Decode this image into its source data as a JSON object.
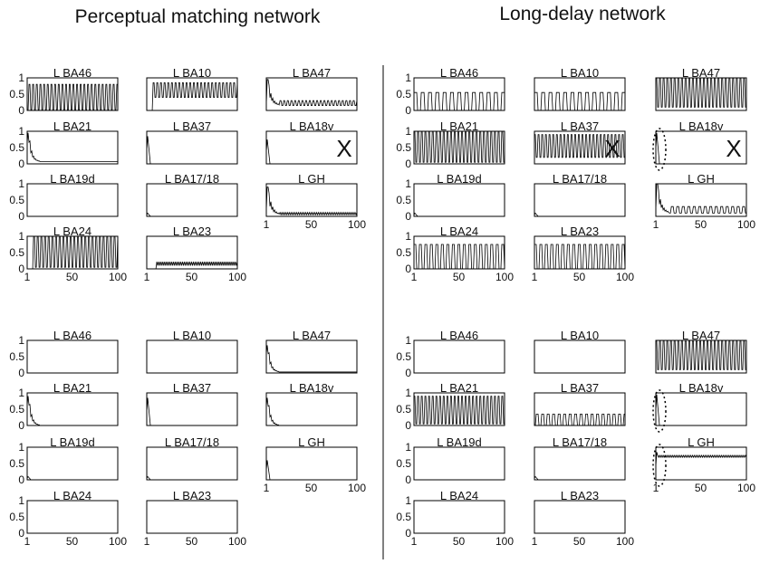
{
  "titles": {
    "left": "Perceptual matching network",
    "right": "Long-delay network"
  },
  "chart_data": {
    "type": "line",
    "x_range": [
      1,
      100
    ],
    "y_range": [
      0,
      1
    ],
    "x_ticks": [
      "1",
      "50",
      "100"
    ],
    "y_ticks": [
      "0",
      "0.5",
      "1"
    ],
    "regions": [
      {
        "network": "Perceptual matching network",
        "condition": "top",
        "panels": [
          {
            "label": "L BA46",
            "pattern": "osc",
            "params": {
              "start": 3,
              "low": 0.02,
              "high": 0.8,
              "period": 2
            }
          },
          {
            "label": "L BA10",
            "pattern": "osc",
            "params": {
              "start": 8,
              "low": 0.4,
              "high": 0.85,
              "period": 2
            }
          },
          {
            "label": "L BA47",
            "pattern": "burst_osc",
            "params": {
              "peak": 0.95,
              "low": 0.15,
              "high": 0.3,
              "period": 2
            }
          },
          {
            "label": "L BA21",
            "pattern": "decay",
            "params": {
              "peak": 0.95,
              "end": 0.07
            }
          },
          {
            "label": "L BA37",
            "pattern": "spike",
            "params": {
              "peak": 0.85,
              "end": 0.0
            }
          },
          {
            "label": "L BA18v",
            "pattern": "spike",
            "params": {
              "peak": 0.75,
              "end": 0.0
            },
            "mark": "X"
          },
          {
            "label": "L BA19d",
            "pattern": "flat",
            "params": {
              "value": 0.0
            }
          },
          {
            "label": "L BA17/18",
            "pattern": "spike",
            "params": {
              "peak": 0.1,
              "end": 0.0
            }
          },
          {
            "label": "L GH",
            "pattern": "burst_osc",
            "params": {
              "peak": 0.9,
              "low": 0.05,
              "high": 0.12,
              "period": 1
            }
          },
          {
            "label": "L BA24",
            "pattern": "osc",
            "params": {
              "start": 8,
              "low": 0.05,
              "high": 1.0,
              "period": 2
            }
          },
          {
            "label": "L BA23",
            "pattern": "osc",
            "params": {
              "start": 12,
              "low": 0.1,
              "high": 0.22,
              "period": 1
            }
          }
        ]
      },
      {
        "network": "Long-delay network",
        "condition": "top",
        "panels": [
          {
            "label": "L BA46",
            "pattern": "osc",
            "params": {
              "start": 1,
              "low": 0.0,
              "high": 0.55,
              "period": 4
            }
          },
          {
            "label": "L BA10",
            "pattern": "osc",
            "params": {
              "start": 1,
              "low": 0.0,
              "high": 0.55,
              "period": 4
            }
          },
          {
            "label": "L BA47",
            "pattern": "osc",
            "params": {
              "start": 1,
              "low": 0.1,
              "high": 1.0,
              "period": 2
            }
          },
          {
            "label": "L BA21",
            "pattern": "osc",
            "params": {
              "start": 1,
              "low": 0.05,
              "high": 1.0,
              "period": 2
            }
          },
          {
            "label": "L BA37",
            "pattern": "osc",
            "params": {
              "start": 1,
              "low": 0.2,
              "high": 0.9,
              "period": 2
            },
            "mark": "X"
          },
          {
            "label": "L BA18v",
            "pattern": "spike",
            "params": {
              "peak": 0.95,
              "end": 0.0
            },
            "mark": "X",
            "oval": true
          },
          {
            "label": "L BA19d",
            "pattern": "spike",
            "params": {
              "peak": 0.1,
              "end": 0.0
            }
          },
          {
            "label": "L BA17/18",
            "pattern": "spike",
            "params": {
              "peak": 0.1,
              "end": 0.0
            }
          },
          {
            "label": "L GH",
            "pattern": "burst_osc",
            "params": {
              "peak": 1.0,
              "low": 0.1,
              "high": 0.3,
              "period": 3
            }
          },
          {
            "label": "L BA24",
            "pattern": "osc",
            "params": {
              "start": 1,
              "low": 0.0,
              "high": 0.75,
              "period": 3
            }
          },
          {
            "label": "L BA23",
            "pattern": "osc",
            "params": {
              "start": 1,
              "low": 0.0,
              "high": 0.75,
              "period": 3
            }
          }
        ]
      },
      {
        "network": "Perceptual matching network",
        "condition": "bottom",
        "panels": [
          {
            "label": "L BA46",
            "pattern": "flat",
            "params": {
              "value": 0.0
            }
          },
          {
            "label": "L BA10",
            "pattern": "flat",
            "params": {
              "value": 0.0
            }
          },
          {
            "label": "L BA47",
            "pattern": "decay",
            "params": {
              "peak": 0.85,
              "end": 0.03
            }
          },
          {
            "label": "L BA21",
            "pattern": "decay",
            "params": {
              "peak": 0.9,
              "end": 0.0
            }
          },
          {
            "label": "L BA37",
            "pattern": "spike",
            "params": {
              "peak": 0.85,
              "end": 0.0
            }
          },
          {
            "label": "L BA18v",
            "pattern": "decay",
            "params": {
              "peak": 0.85,
              "end": 0.0
            }
          },
          {
            "label": "L BA19d",
            "pattern": "spike",
            "params": {
              "peak": 0.1,
              "end": 0.0
            }
          },
          {
            "label": "L BA17/18",
            "pattern": "spike",
            "params": {
              "peak": 0.1,
              "end": 0.0
            }
          },
          {
            "label": "L GH",
            "pattern": "spike",
            "params": {
              "peak": 0.6,
              "end": 0.0
            }
          },
          {
            "label": "L BA24",
            "pattern": "flat",
            "params": {
              "value": 0.0
            }
          },
          {
            "label": "L BA23",
            "pattern": "flat",
            "params": {
              "value": 0.0
            }
          }
        ]
      },
      {
        "network": "Long-delay network",
        "condition": "bottom",
        "panels": [
          {
            "label": "L BA46",
            "pattern": "flat",
            "params": {
              "value": 0.0
            }
          },
          {
            "label": "L BA10",
            "pattern": "flat",
            "params": {
              "value": 0.0
            }
          },
          {
            "label": "L BA47",
            "pattern": "osc",
            "params": {
              "start": 1,
              "low": 0.1,
              "high": 1.0,
              "period": 2
            }
          },
          {
            "label": "L BA21",
            "pattern": "osc",
            "params": {
              "start": 1,
              "low": 0.05,
              "high": 0.9,
              "period": 2
            }
          },
          {
            "label": "L BA37",
            "pattern": "osc",
            "params": {
              "start": 3,
              "low": 0.0,
              "high": 0.35,
              "period": 3
            }
          },
          {
            "label": "L BA18v",
            "pattern": "spike",
            "params": {
              "peak": 0.95,
              "end": 0.0
            },
            "oval": true
          },
          {
            "label": "L BA19d",
            "pattern": "flat",
            "params": {
              "value": 0.0
            }
          },
          {
            "label": "L BA17/18",
            "pattern": "spike",
            "params": {
              "peak": 0.1,
              "end": 0.0
            }
          },
          {
            "label": "L GH",
            "pattern": "step_osc",
            "params": {
              "peak": 0.85,
              "level": 0.72,
              "amp": 0.03,
              "period": 1
            },
            "oval": true
          },
          {
            "label": "L BA24",
            "pattern": "flat",
            "params": {
              "value": 0.0
            }
          },
          {
            "label": "L BA23",
            "pattern": "flat",
            "params": {
              "value": 0.0
            }
          }
        ]
      }
    ]
  }
}
